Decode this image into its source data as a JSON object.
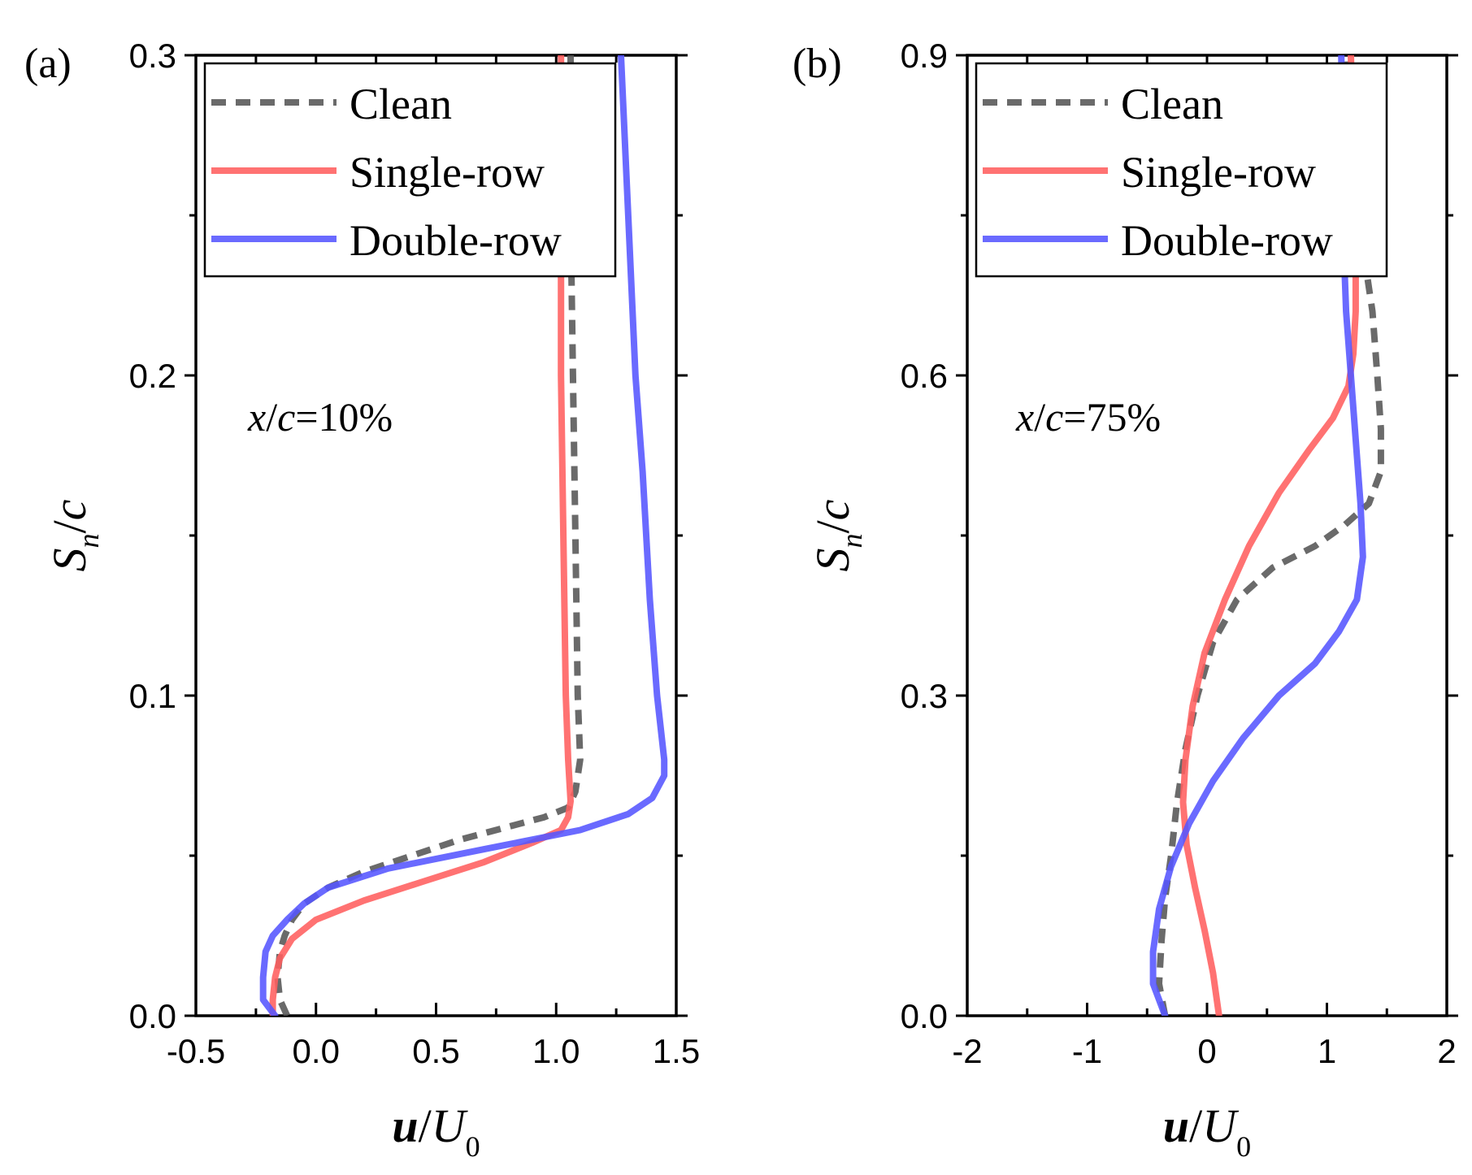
{
  "chart_data": [
    {
      "type": "line",
      "panel_label": "(a)",
      "annotation": {
        "italic_a": "x",
        "sep": "/",
        "italic_b": "c",
        "rest": "=10%"
      },
      "xlabel": {
        "main": "u",
        "sep": "/",
        "var": "U",
        "sub": "0"
      },
      "ylabel": {
        "main": "S",
        "sub": "n",
        "sep": "/",
        "var": "c"
      },
      "xlim": [
        -0.5,
        1.5
      ],
      "ylim": [
        0.0,
        0.3
      ],
      "xticks": [
        -0.5,
        0.0,
        0.5,
        1.0,
        1.5
      ],
      "xtick_labels": [
        "-0.5",
        "0.0",
        "0.5",
        "1.0",
        "1.5"
      ],
      "yticks": [
        0.0,
        0.1,
        0.2,
        0.3
      ],
      "ytick_labels": [
        "0.0",
        "0.1",
        "0.2",
        "0.3"
      ],
      "legend": {
        "position": "top-left",
        "entries": [
          "Clean",
          "Single-row",
          "Double-row"
        ]
      },
      "series": [
        {
          "name": "Clean",
          "color": "#555555",
          "dashed": true,
          "points": [
            [
              -0.12,
              0.0
            ],
            [
              -0.15,
              0.005
            ],
            [
              -0.16,
              0.012
            ],
            [
              -0.15,
              0.02
            ],
            [
              -0.13,
              0.025
            ],
            [
              -0.1,
              0.03
            ],
            [
              -0.05,
              0.035
            ],
            [
              0.05,
              0.04
            ],
            [
              0.2,
              0.045
            ],
            [
              0.4,
              0.05
            ],
            [
              0.6,
              0.055
            ],
            [
              0.8,
              0.059
            ],
            [
              0.95,
              0.062
            ],
            [
              1.05,
              0.065
            ],
            [
              1.08,
              0.07
            ],
            [
              1.1,
              0.08
            ],
            [
              1.09,
              0.1
            ],
            [
              1.08,
              0.15
            ],
            [
              1.07,
              0.2
            ],
            [
              1.06,
              0.25
            ],
            [
              1.06,
              0.3
            ]
          ]
        },
        {
          "name": "Single-row",
          "color": "#ff5f5f",
          "dashed": false,
          "points": [
            [
              -0.18,
              0.0
            ],
            [
              -0.18,
              0.005
            ],
            [
              -0.17,
              0.012
            ],
            [
              -0.15,
              0.018
            ],
            [
              -0.1,
              0.024
            ],
            [
              0.0,
              0.03
            ],
            [
              0.2,
              0.036
            ],
            [
              0.45,
              0.042
            ],
            [
              0.7,
              0.048
            ],
            [
              0.9,
              0.054
            ],
            [
              1.02,
              0.058
            ],
            [
              1.05,
              0.062
            ],
            [
              1.06,
              0.067
            ],
            [
              1.05,
              0.08
            ],
            [
              1.04,
              0.1
            ],
            [
              1.03,
              0.15
            ],
            [
              1.02,
              0.2
            ],
            [
              1.02,
              0.25
            ],
            [
              1.02,
              0.3
            ]
          ]
        },
        {
          "name": "Double-row",
          "color": "#5555ff",
          "dashed": false,
          "points": [
            [
              -0.17,
              0.0
            ],
            [
              -0.22,
              0.005
            ],
            [
              -0.22,
              0.012
            ],
            [
              -0.21,
              0.02
            ],
            [
              -0.18,
              0.025
            ],
            [
              -0.12,
              0.03
            ],
            [
              -0.05,
              0.035
            ],
            [
              0.05,
              0.04
            ],
            [
              0.3,
              0.046
            ],
            [
              0.7,
              0.052
            ],
            [
              1.1,
              0.058
            ],
            [
              1.3,
              0.063
            ],
            [
              1.4,
              0.068
            ],
            [
              1.45,
              0.075
            ],
            [
              1.45,
              0.08
            ],
            [
              1.42,
              0.1
            ],
            [
              1.39,
              0.13
            ],
            [
              1.36,
              0.17
            ],
            [
              1.33,
              0.2
            ],
            [
              1.3,
              0.25
            ],
            [
              1.27,
              0.3
            ]
          ]
        }
      ]
    },
    {
      "type": "line",
      "panel_label": "(b)",
      "annotation": {
        "italic_a": "x",
        "sep": "/",
        "italic_b": "c",
        "rest": "=75%"
      },
      "xlabel": {
        "main": "u",
        "sep": "/",
        "var": "U",
        "sub": "0"
      },
      "ylabel": {
        "main": "S",
        "sub": "n",
        "sep": "/",
        "var": "c"
      },
      "xlim": [
        -2,
        2
      ],
      "ylim": [
        0.0,
        0.9
      ],
      "xticks": [
        -2,
        -1,
        0,
        1,
        2
      ],
      "xtick_labels": [
        "-2",
        "-1",
        "0",
        "1",
        "2"
      ],
      "yticks": [
        0.0,
        0.3,
        0.6,
        0.9
      ],
      "ytick_labels": [
        "0.0",
        "0.3",
        "0.6",
        "0.9"
      ],
      "legend": {
        "position": "top-left",
        "entries": [
          "Clean",
          "Single-row",
          "Double-row"
        ]
      },
      "series": [
        {
          "name": "Clean",
          "color": "#555555",
          "dashed": true,
          "points": [
            [
              -0.35,
              0.0
            ],
            [
              -0.4,
              0.03
            ],
            [
              -0.38,
              0.07
            ],
            [
              -0.35,
              0.11
            ],
            [
              -0.3,
              0.15
            ],
            [
              -0.25,
              0.2
            ],
            [
              -0.18,
              0.25
            ],
            [
              -0.08,
              0.3
            ],
            [
              0.05,
              0.35
            ],
            [
              0.25,
              0.39
            ],
            [
              0.55,
              0.42
            ],
            [
              0.9,
              0.44
            ],
            [
              1.15,
              0.46
            ],
            [
              1.35,
              0.48
            ],
            [
              1.45,
              0.51
            ],
            [
              1.45,
              0.55
            ],
            [
              1.42,
              0.6
            ],
            [
              1.38,
              0.66
            ],
            [
              1.3,
              0.72
            ],
            [
              1.22,
              0.78
            ],
            [
              1.18,
              0.84
            ],
            [
              1.16,
              0.9
            ]
          ]
        },
        {
          "name": "Single-row",
          "color": "#ff5f5f",
          "dashed": false,
          "points": [
            [
              0.1,
              0.0
            ],
            [
              0.05,
              0.04
            ],
            [
              -0.02,
              0.08
            ],
            [
              -0.1,
              0.12
            ],
            [
              -0.17,
              0.16
            ],
            [
              -0.2,
              0.2
            ],
            [
              -0.18,
              0.24
            ],
            [
              -0.12,
              0.29
            ],
            [
              -0.02,
              0.34
            ],
            [
              0.15,
              0.39
            ],
            [
              0.35,
              0.44
            ],
            [
              0.6,
              0.49
            ],
            [
              0.85,
              0.53
            ],
            [
              1.05,
              0.56
            ],
            [
              1.18,
              0.59
            ],
            [
              1.22,
              0.62
            ],
            [
              1.24,
              0.66
            ],
            [
              1.24,
              0.72
            ],
            [
              1.22,
              0.8
            ],
            [
              1.2,
              0.9
            ]
          ]
        },
        {
          "name": "Double-row",
          "color": "#5555ff",
          "dashed": false,
          "points": [
            [
              -0.35,
              0.0
            ],
            [
              -0.45,
              0.03
            ],
            [
              -0.45,
              0.06
            ],
            [
              -0.4,
              0.1
            ],
            [
              -0.3,
              0.14
            ],
            [
              -0.15,
              0.18
            ],
            [
              0.05,
              0.22
            ],
            [
              0.3,
              0.26
            ],
            [
              0.6,
              0.3
            ],
            [
              0.9,
              0.33
            ],
            [
              1.1,
              0.36
            ],
            [
              1.25,
              0.39
            ],
            [
              1.3,
              0.43
            ],
            [
              1.28,
              0.48
            ],
            [
              1.24,
              0.54
            ],
            [
              1.2,
              0.6
            ],
            [
              1.16,
              0.66
            ],
            [
              1.14,
              0.72
            ],
            [
              1.13,
              0.8
            ],
            [
              1.12,
              0.9
            ]
          ]
        }
      ]
    }
  ]
}
